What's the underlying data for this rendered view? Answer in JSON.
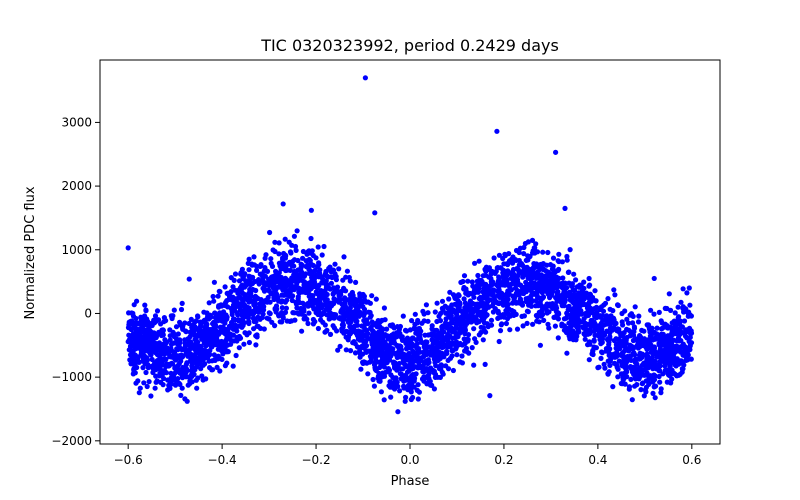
{
  "chart_data": {
    "type": "scatter",
    "title": "TIC 0320323992, period 0.2429 days",
    "xlabel": "Phase",
    "ylabel": "Normalized PDC flux",
    "xlim": [
      -0.66,
      0.66
    ],
    "ylim": [
      -2050,
      3980
    ],
    "xticks": [
      -0.6,
      -0.4,
      -0.2,
      0.0,
      0.2,
      0.4,
      0.6
    ],
    "xtick_labels": [
      "−0.6",
      "−0.4",
      "−0.2",
      "0.0",
      "0.2",
      "0.4",
      "0.6"
    ],
    "yticks": [
      -2000,
      -1000,
      0,
      1000,
      2000,
      3000
    ],
    "ytick_labels": [
      "−2000",
      "−1000",
      "0",
      "1000",
      "2000",
      "3000"
    ],
    "grid": false,
    "marker_color": "#0000ff",
    "trend": {
      "description": "Dense phase-folded light curve; mean flux follows two maxima per cycle",
      "phase": [
        -0.6,
        -0.55,
        -0.5,
        -0.45,
        -0.4,
        -0.35,
        -0.3,
        -0.25,
        -0.2,
        -0.15,
        -0.1,
        -0.05,
        0.0,
        0.05,
        0.1,
        0.15,
        0.2,
        0.25,
        0.3,
        0.35,
        0.4,
        0.45,
        0.5,
        0.55,
        0.6
      ],
      "mean_flux": [
        -350,
        -550,
        -700,
        -550,
        -200,
        150,
        400,
        480,
        400,
        150,
        -250,
        -650,
        -800,
        -600,
        -200,
        200,
        420,
        480,
        400,
        150,
        -200,
        -550,
        -700,
        -550,
        -300
      ],
      "scatter_halfwidth": 700
    },
    "outliers": [
      {
        "x": -0.095,
        "y": 3700
      },
      {
        "x": 0.185,
        "y": 2860
      },
      {
        "x": 0.31,
        "y": 2530
      },
      {
        "x": -0.075,
        "y": 1580
      },
      {
        "x": -0.27,
        "y": 1720
      },
      {
        "x": -0.21,
        "y": 1620
      },
      {
        "x": 0.33,
        "y": 1650
      },
      {
        "x": 0.17,
        "y": -1290
      },
      {
        "x": -0.6,
        "y": 1030
      },
      {
        "x": 0.16,
        "y": -800
      },
      {
        "x": 0.52,
        "y": 550
      },
      {
        "x": -0.47,
        "y": 540
      }
    ]
  }
}
